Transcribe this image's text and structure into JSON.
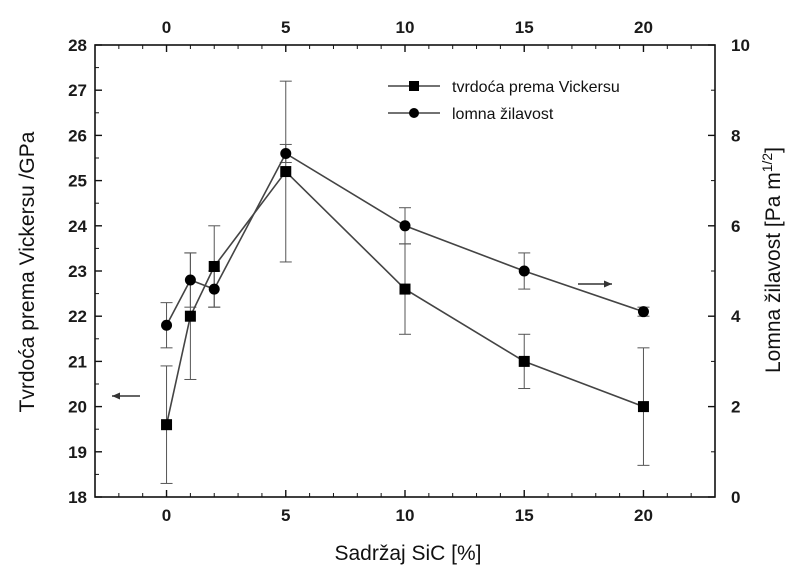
{
  "chart_data": {
    "type": "line",
    "xlabel": "Sadržaj SiC [%]",
    "ylabel": "Tvrdoća prema Vickersu /GPa",
    "ylabel_right_prefix": "Lomna žilavost [Pa m",
    "ylabel_right_sup": "1/2",
    "ylabel_right_suffix": "]",
    "xlim": [
      -3,
      23
    ],
    "ylim": [
      18,
      28
    ],
    "y2lim": [
      0,
      10
    ],
    "x_ticks": [
      0,
      5,
      10,
      15,
      20
    ],
    "y_ticks": [
      18,
      19,
      20,
      21,
      22,
      23,
      24,
      25,
      26,
      27,
      28
    ],
    "y2_ticks": [
      0,
      2,
      4,
      6,
      8,
      10
    ],
    "top_axis_ticks": [
      0,
      5,
      10,
      15,
      20
    ],
    "legend_position": "top-right",
    "grid": false,
    "series": [
      {
        "name": "tvrdoća prema Vickersu",
        "axis": "left",
        "marker": "square",
        "x": [
          0,
          1,
          2,
          5,
          10,
          15,
          20
        ],
        "y": [
          19.6,
          22.0,
          23.1,
          25.2,
          22.6,
          21.0,
          20.0
        ],
        "err_low": [
          18.3,
          20.6,
          22.2,
          23.2,
          21.6,
          20.4,
          18.7
        ],
        "err_high": [
          20.9,
          23.4,
          24.0,
          27.2,
          23.6,
          21.6,
          21.3
        ],
        "arrow": "left"
      },
      {
        "name": "lomna žilavost",
        "axis": "right",
        "marker": "circle",
        "x": [
          0,
          1,
          2,
          5,
          10,
          15,
          20
        ],
        "y": [
          3.8,
          4.8,
          4.6,
          7.6,
          6.0,
          5.0,
          4.1
        ],
        "err_low": [
          3.3,
          4.2,
          4.2,
          7.4,
          5.6,
          4.6,
          4.0
        ],
        "err_high": [
          4.3,
          5.4,
          5.0,
          7.8,
          6.4,
          5.4,
          4.2
        ],
        "arrow": "right"
      }
    ]
  }
}
